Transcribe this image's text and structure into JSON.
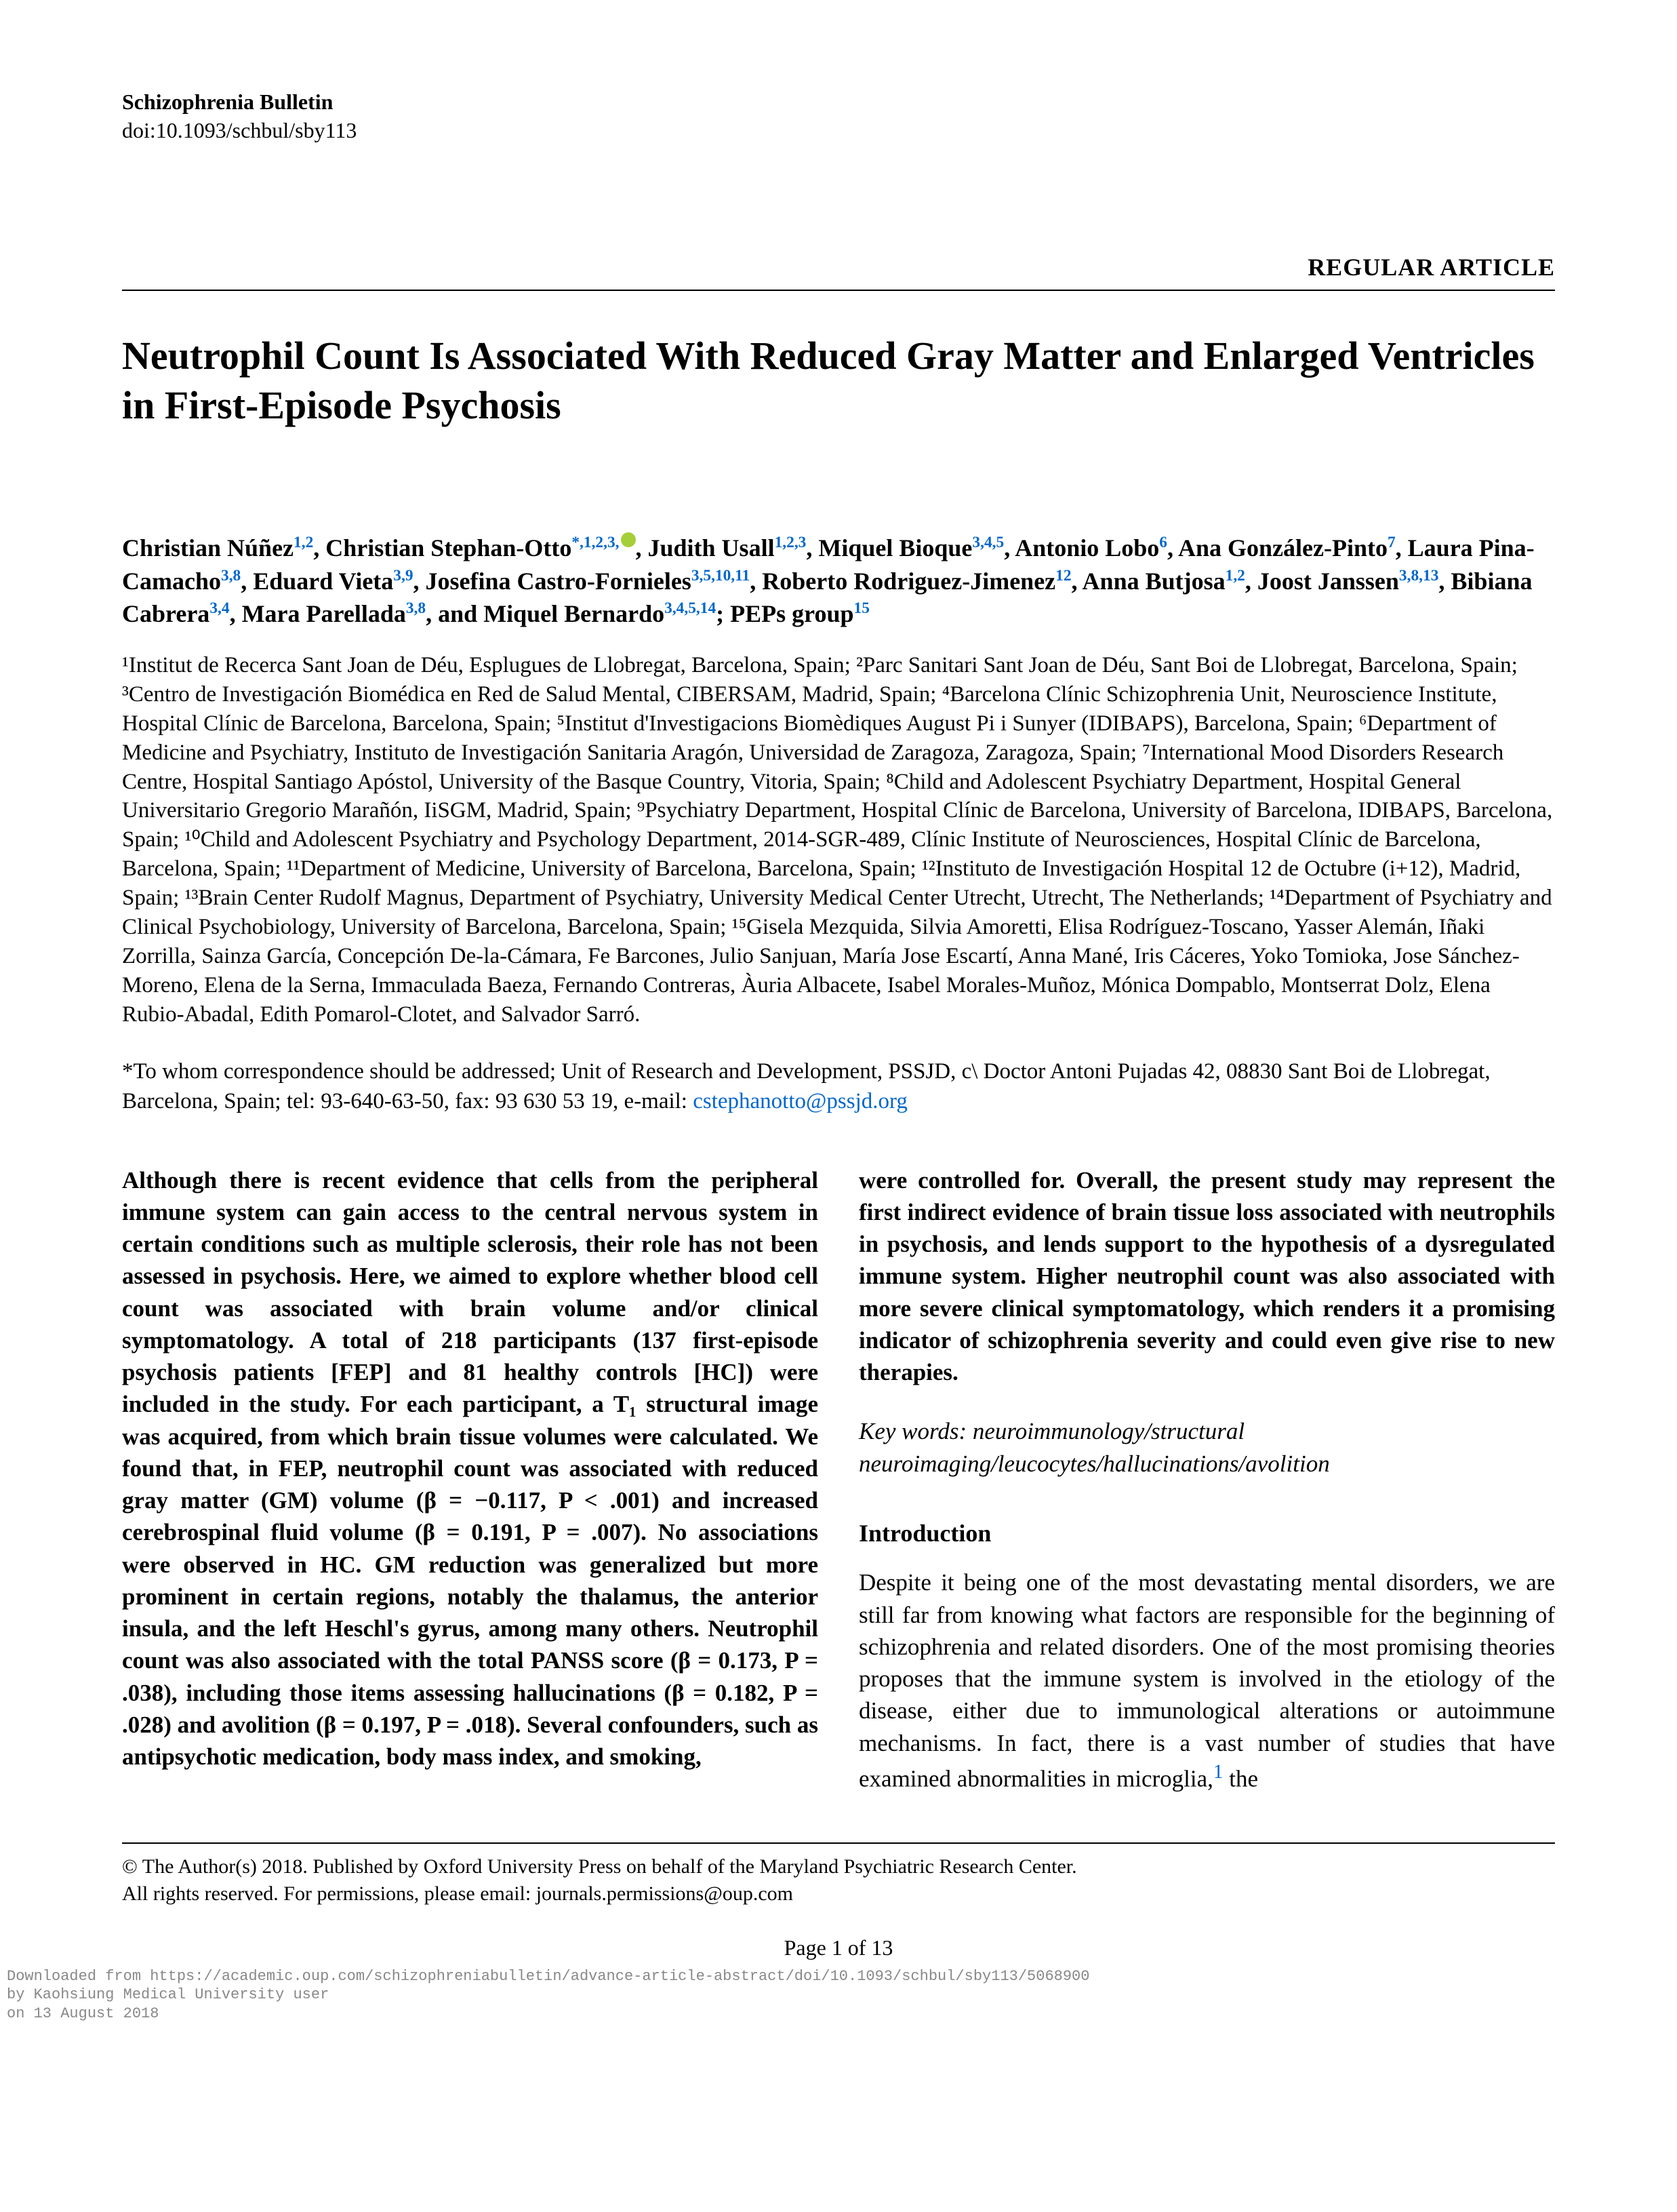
{
  "journal": {
    "name": "Schizophrenia Bulletin",
    "doi": "doi:10.1093/schbul/sby113"
  },
  "articleType": "REGULAR ARTICLE",
  "title": "Neutrophil Count Is Associated With Reduced Gray Matter and Enlarged Ventricles in First-Episode Psychosis",
  "authorsHtml": "Christian Núñez<sup class='affil-link'>1,2</sup>, Christian Stephan-Otto<sup class='affil-link'>*,1,2,3,</sup><span class='orcid' data-name='orcid-icon' data-interactable='false'></span>, Judith Usall<sup class='affil-link'>1,2,3</sup>, Miquel Bioque<sup class='affil-link'>3,4,5</sup>, Antonio Lobo<sup class='affil-link'>6</sup>, Ana González-Pinto<sup class='affil-link'>7</sup>, Laura Pina-Camacho<sup class='affil-link'>3,8</sup>, Eduard Vieta<sup class='affil-link'>3,9</sup>, Josefina Castro-Fornieles<sup class='affil-link'>3,5,10,11</sup>, Roberto Rodriguez-Jimenez<sup class='affil-link'>12</sup>, Anna Butjosa<sup class='affil-link'>1,2</sup>, Joost Janssen<sup class='affil-link'>3,8,13</sup>, Bibiana Cabrera<sup class='affil-link'>3,4</sup>, Mara Parellada<sup class='affil-link'>3,8</sup>, and Miquel Bernardo<sup class='affil-link'>3,4,5,14</sup>; PEPs group<sup class='affil-link'>15</sup>",
  "affiliations": "¹Institut de Recerca Sant Joan de Déu, Esplugues de Llobregat, Barcelona, Spain; ²Parc Sanitari Sant Joan de Déu, Sant Boi de Llobregat, Barcelona, Spain; ³Centro de Investigación Biomédica en Red de Salud Mental, CIBERSAM, Madrid, Spain; ⁴Barcelona Clínic Schizophrenia Unit, Neuroscience Institute, Hospital Clínic de Barcelona, Barcelona, Spain; ⁵Institut d'Investigacions Biomèdiques August Pi i Sunyer (IDIBAPS), Barcelona, Spain; ⁶Department of Medicine and Psychiatry, Instituto de Investigación Sanitaria Aragón, Universidad de Zaragoza, Zaragoza, Spain; ⁷International Mood Disorders Research Centre, Hospital Santiago Apóstol, University of the Basque Country, Vitoria, Spain; ⁸Child and Adolescent Psychiatry Department, Hospital General Universitario Gregorio Marañón, IiSGM, Madrid, Spain; ⁹Psychiatry Department, Hospital Clínic de Barcelona, University of Barcelona, IDIBAPS, Barcelona, Spain; ¹⁰Child and Adolescent Psychiatry and Psychology Department, 2014-SGR-489, Clínic Institute of Neurosciences, Hospital Clínic de Barcelona, Barcelona, Spain; ¹¹Department of Medicine, University of Barcelona, Barcelona, Spain; ¹²Instituto de Investigación Hospital 12 de Octubre (i+12), Madrid, Spain; ¹³Brain Center Rudolf Magnus, Department of Psychiatry, University Medical Center Utrecht, Utrecht, The Netherlands; ¹⁴Department of Psychiatry and Clinical Psychobiology, University of Barcelona, Barcelona, Spain; ¹⁵Gisela Mezquida, Silvia Amoretti, Elisa Rodríguez-Toscano, Yasser Alemán, Iñaki Zorrilla, Sainza García, Concepción De-la-Cámara, Fe Barcones, Julio Sanjuan, María Jose Escartí, Anna Mané, Iris Cáceres, Yoko Tomioka, Jose Sánchez-Moreno, Elena de la Serna, Immaculada Baeza, Fernando Contreras, Àuria Albacete, Isabel Morales-Muñoz, Mónica Dompablo, Montserrat Dolz, Elena Rubio-Abadal, Edith Pomarol-Clotet, and Salvador Sarró.",
  "correspondence": {
    "text": "*To whom correspondence should be addressed; Unit of Research and Development, PSSJD, c\\ Doctor Antoni Pujadas 42, 08830 Sant Boi de Llobregat, Barcelona, Spain; tel: 93-640-63-50, fax: 93 630 53 19, e-mail: ",
    "email": "cstephanotto@pssjd.org"
  },
  "abstract": {
    "col1": "Although there is recent evidence that cells from the peripheral immune system can gain access to the central nervous system in certain conditions such as multiple sclerosis, their role has not been assessed in psychosis. Here, we aimed to explore whether blood cell count was associated with brain volume and/or clinical symptomatology. A total of 218 participants (137 first-episode psychosis patients [FEP] and 81 healthy controls [HC]) were included in the study. For each participant, a T₁ structural image was acquired, from which brain tissue volumes were calculated. We found that, in FEP, neutrophil count was associated with reduced gray matter (GM) volume (β = −0.117, P < .001) and increased cerebrospinal fluid volume (β = 0.191, P = .007). No associations were observed in HC. GM reduction was generalized but more prominent in certain regions, notably the thalamus, the anterior insula, and the left Heschl's gyrus, among many others. Neutrophil count was also associated with the total PANSS score (β = 0.173, P = .038), including those items assessing hallucinations (β = 0.182, P = .028) and avolition (β = 0.197, P = .018). Several confounders, such as antipsychotic medication, body mass index, and smoking,",
    "col2": "were controlled for. Overall, the present study may represent the first indirect evidence of brain tissue loss associated with neutrophils in psychosis, and lends support to the hypothesis of a dysregulated immune system. Higher neutrophil count was also associated with more severe clinical symptomatology, which renders it a promising indicator of schizophrenia severity and could even give rise to new therapies."
  },
  "keywords": {
    "label": "Key words:",
    "value": "neuroimmunology/structural neuroimaging/leucocytes/hallucinations/avolition"
  },
  "intro": {
    "heading": "Introduction",
    "text": "Despite it being one of the most devastating mental disorders, we are still far from knowing what factors are responsible for the beginning of schizophrenia and related disorders. One of the most promising theories proposes that the immune system is involved in the etiology of the disease, either due to immunological alterations or autoimmune mechanisms. In fact, there is a vast number of studies that have examined abnormalities in microglia,",
    "ref": "1",
    "tail": " the"
  },
  "copyright": "© The Author(s) 2018. Published by Oxford University Press on behalf of the Maryland Psychiatric Research Center.\nAll rights reserved. For permissions, please email: journals.permissions@oup.com",
  "pageNum": "Page 1 of 13",
  "downloadNote": "Downloaded from https://academic.oup.com/schizophreniabulletin/advance-article-abstract/doi/10.1093/schbul/sby113/5068900\nby Kaohsiung Medical University user\non 13 August 2018"
}
